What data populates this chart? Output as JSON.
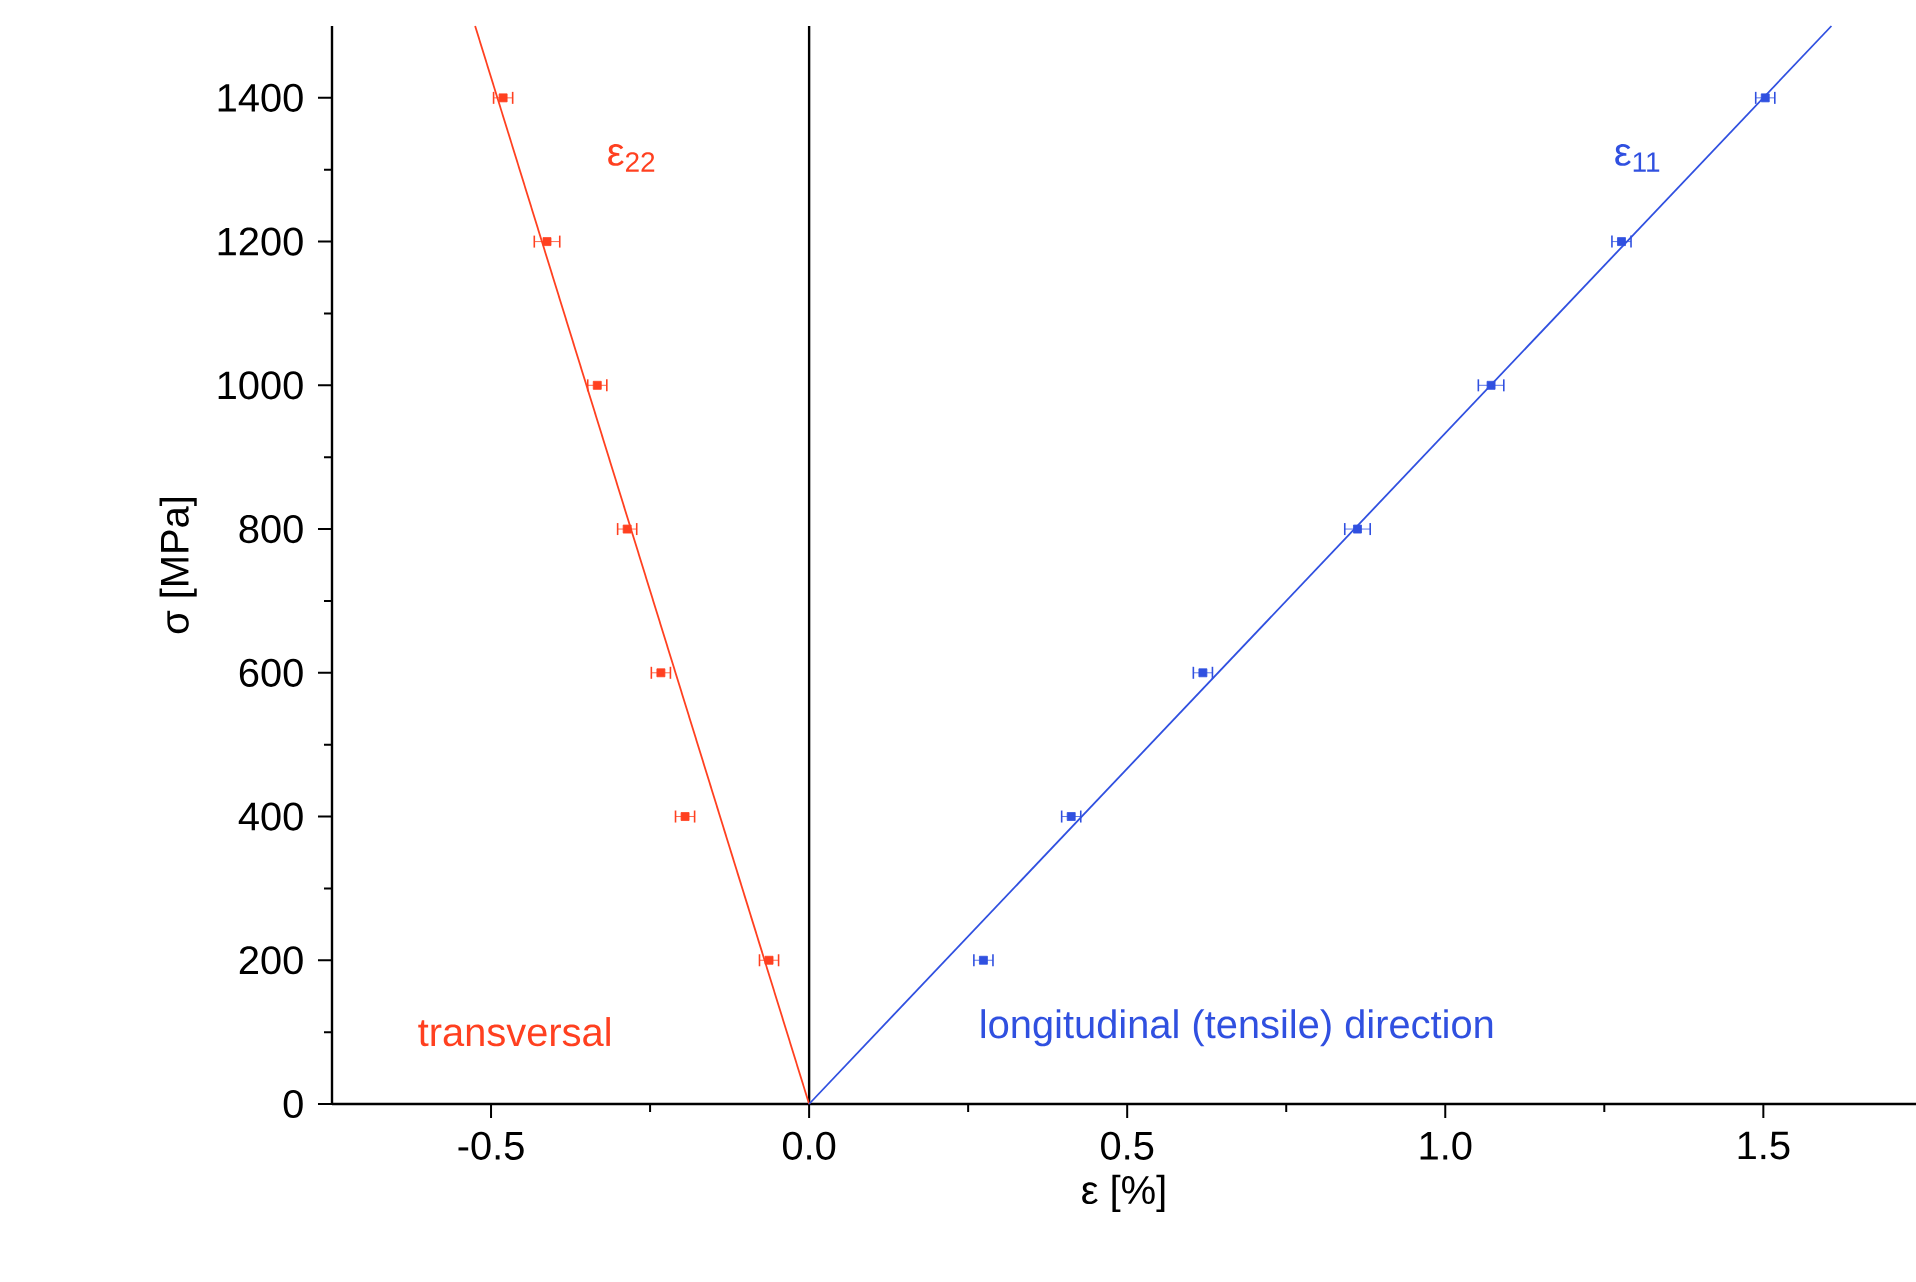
{
  "chart_data": {
    "type": "scatter",
    "xlabel": "ε [%]",
    "ylabel": "σ [MPa]",
    "xlim": [
      -0.75,
      1.74
    ],
    "ylim": [
      0,
      1500
    ],
    "xticks": [
      {
        "value": -0.5,
        "label": "-0.5"
      },
      {
        "value": 0,
        "label": "0.0"
      },
      {
        "value": 0.5,
        "label": "0.5"
      },
      {
        "value": 1,
        "label": "1.0"
      },
      {
        "value": 1.5,
        "label": "1.5"
      }
    ],
    "yticks": [
      0,
      200,
      400,
      600,
      800,
      1000,
      1200,
      1400
    ],
    "grid": false,
    "legend": false,
    "ref_lines": [
      {
        "axis": "x",
        "value": 0,
        "color": "#000000"
      }
    ],
    "series": [
      {
        "name": "ε$_{22}$",
        "color": "#ff4020",
        "marker": "square",
        "x": [
          -0.063,
          -0.195,
          -0.233,
          -0.286,
          -0.333,
          -0.412,
          -0.481
        ],
        "values": [
          200,
          400,
          600,
          800,
          1000,
          1200,
          1400
        ],
        "xerrors": [
          0.015,
          0.015,
          0.015,
          0.015,
          0.015,
          0.02,
          0.015
        ]
      },
      {
        "type": "line",
        "color": "#ff4020",
        "marker": "none",
        "x": [
          0,
          -0.525
        ],
        "values": [
          0,
          1500
        ]
      },
      {
        "name": "ε$_{11}$",
        "color": "#3050e0",
        "marker": "square",
        "x": [
          0.274,
          0.412,
          0.619,
          0.862,
          1.072,
          1.277,
          1.503
        ],
        "values": [
          200,
          400,
          600,
          800,
          1000,
          1200,
          1400
        ],
        "xerrors": [
          0.015,
          0.015,
          0.015,
          0.02,
          0.02,
          0.015,
          0.015
        ]
      },
      {
        "type": "line",
        "color": "#3050e0",
        "marker": "none",
        "x": [
          0,
          1.607
        ],
        "values": [
          0,
          1500
        ]
      }
    ],
    "annotations": [
      "transversal",
      "longitudinal (tensile) direction"
    ]
  }
}
